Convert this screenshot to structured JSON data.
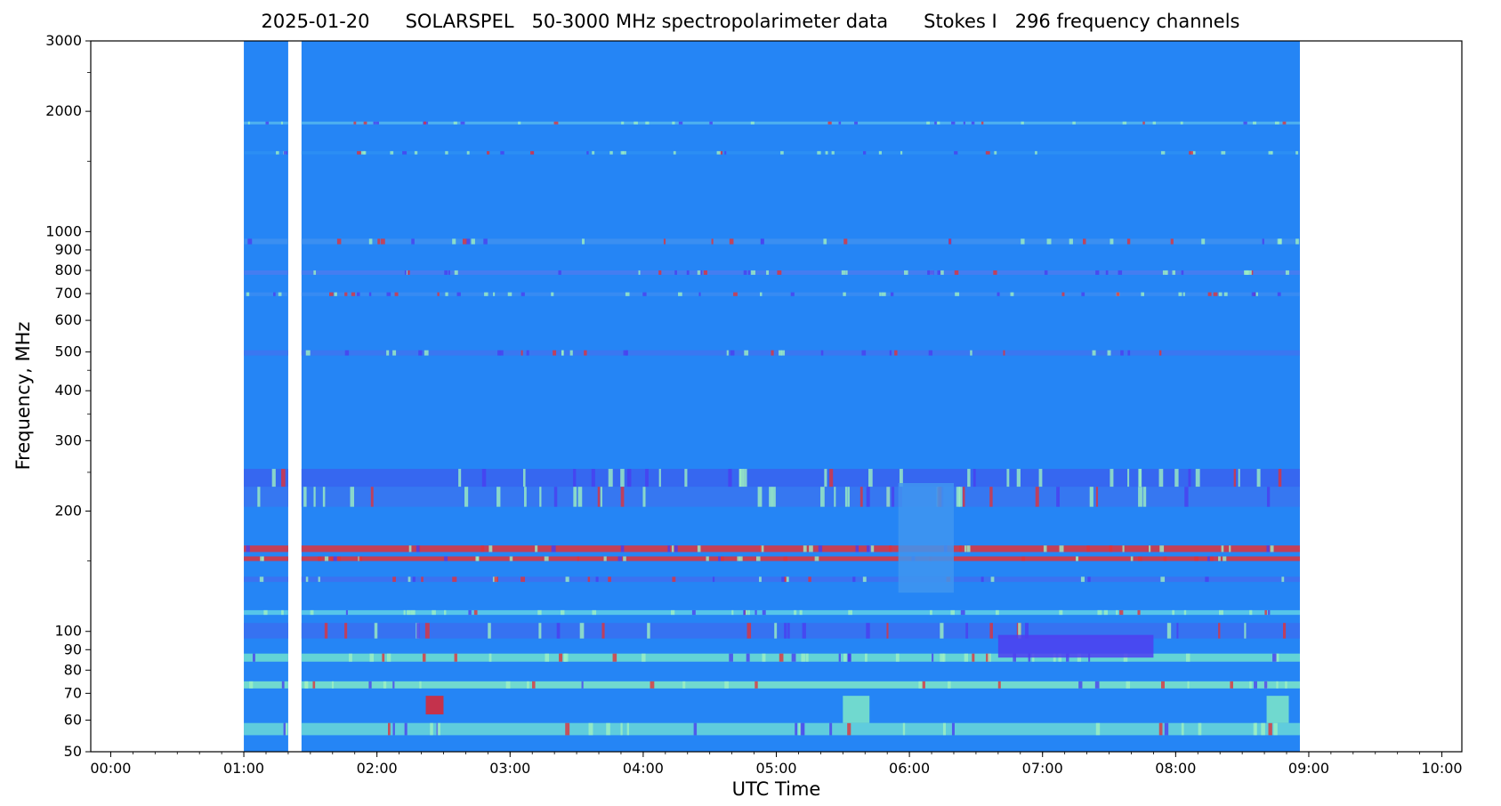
{
  "chart_data": {
    "type": "heatmap",
    "title": "2025-01-20      SOLARSPEL   50-3000 MHz spectropolarimeter data      Stokes I   296 frequency channels",
    "xlabel": "UTC Time",
    "ylabel": "Frequency, MHz",
    "y_scale": "log",
    "ylim": [
      50,
      3000
    ],
    "xlim_hours": [
      -0.15,
      10.15
    ],
    "x_ticks": [
      {
        "v": 0,
        "label": "00:00"
      },
      {
        "v": 1,
        "label": "01:00"
      },
      {
        "v": 2,
        "label": "02:00"
      },
      {
        "v": 3,
        "label": "03:00"
      },
      {
        "v": 4,
        "label": "04:00"
      },
      {
        "v": 5,
        "label": "05:00"
      },
      {
        "v": 6,
        "label": "06:00"
      },
      {
        "v": 7,
        "label": "07:00"
      },
      {
        "v": 8,
        "label": "08:00"
      },
      {
        "v": 9,
        "label": "09:00"
      },
      {
        "v": 10,
        "label": "10:00"
      }
    ],
    "y_ticks": [
      {
        "v": 50,
        "label": "50"
      },
      {
        "v": 60,
        "label": "60"
      },
      {
        "v": 70,
        "label": "70"
      },
      {
        "v": 80,
        "label": "80"
      },
      {
        "v": 90,
        "label": "90"
      },
      {
        "v": 100,
        "label": "100"
      },
      {
        "v": 200,
        "label": "200"
      },
      {
        "v": 300,
        "label": "300"
      },
      {
        "v": 400,
        "label": "400"
      },
      {
        "v": 500,
        "label": "500"
      },
      {
        "v": 600,
        "label": "600"
      },
      {
        "v": 700,
        "label": "700"
      },
      {
        "v": 800,
        "label": "800"
      },
      {
        "v": 900,
        "label": "900"
      },
      {
        "v": 1000,
        "label": "1000"
      },
      {
        "v": 2000,
        "label": "2000"
      },
      {
        "v": 3000,
        "label": "3000"
      }
    ],
    "data_segments": [
      {
        "start_utc": "01:00",
        "end_utc": "01:20"
      },
      {
        "start_utc": "01:26",
        "end_utc": "08:56"
      }
    ],
    "background_color": "#2585f5",
    "bands": [
      {
        "f_low": 1855,
        "f_high": 1885,
        "color": "#56b8ee"
      },
      {
        "f_low": 1560,
        "f_high": 1590,
        "color": "#2d8ff3"
      },
      {
        "f_low": 930,
        "f_high": 960,
        "color": "#3f90f0"
      },
      {
        "f_low": 780,
        "f_high": 800,
        "color": "#4a7bf0"
      },
      {
        "f_low": 690,
        "f_high": 705,
        "color": "#3b8cf2"
      },
      {
        "f_low": 490,
        "f_high": 505,
        "color": "#3e74f0"
      },
      {
        "f_low": 230,
        "f_high": 255,
        "color": "#3a62ef"
      },
      {
        "f_low": 205,
        "f_high": 230,
        "color": "#3a74f0"
      },
      {
        "f_low": 158,
        "f_high": 164,
        "color": "#e0323a"
      },
      {
        "f_low": 150,
        "f_high": 154,
        "color": "#e0323a"
      },
      {
        "f_low": 133,
        "f_high": 137,
        "color": "#3f6ef0"
      },
      {
        "f_low": 110,
        "f_high": 113,
        "color": "#5fd0e8"
      },
      {
        "f_low": 96,
        "f_high": 105,
        "color": "#3a6ff0"
      },
      {
        "f_low": 84,
        "f_high": 88,
        "color": "#6fe0d0"
      },
      {
        "f_low": 72,
        "f_high": 75,
        "color": "#7ee8c8"
      },
      {
        "f_low": 55,
        "f_high": 59,
        "color": "#6ad8d8"
      }
    ],
    "bursts": [
      {
        "time_utc": "02:22",
        "duration_min": 8,
        "f_low": 62,
        "f_high": 69,
        "color": "#e0232e"
      },
      {
        "time_utc": "05:30",
        "duration_min": 12,
        "f_low": 59,
        "f_high": 69,
        "color": "#7ee8c8"
      },
      {
        "time_utc": "08:41",
        "duration_min": 10,
        "f_low": 59,
        "f_high": 69,
        "color": "#7ee8c8"
      },
      {
        "time_utc": "05:55",
        "duration_min": 25,
        "f_low": 125,
        "f_high": 235,
        "color": "#3f95f0"
      },
      {
        "time_utc": "06:40",
        "duration_min": 70,
        "f_low": 86,
        "f_high": 98,
        "color": "#4f3ef0"
      }
    ]
  }
}
